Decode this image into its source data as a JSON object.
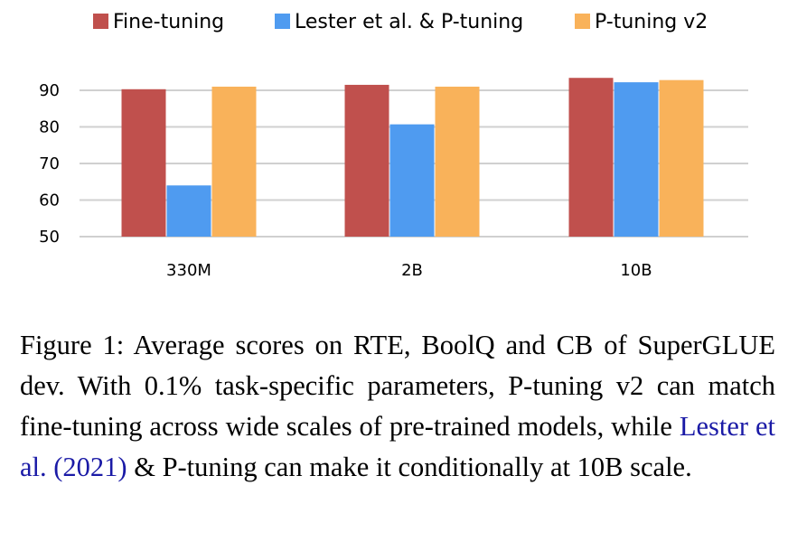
{
  "chart_data": {
    "type": "bar",
    "categories": [
      "330M",
      "2B",
      "10B"
    ],
    "series": [
      {
        "name": "Fine-tuning",
        "color": "#c0504d",
        "values": [
          90.3,
          91.5,
          93.4
        ]
      },
      {
        "name": "Lester et al. & P-tuning",
        "color": "#4f9bf0",
        "values": [
          64.0,
          80.7,
          92.2
        ]
      },
      {
        "name": "P-tuning v2",
        "color": "#f9b25a",
        "values": [
          91.0,
          91.0,
          92.8
        ]
      }
    ],
    "yticks": [
      50,
      60,
      70,
      80,
      90
    ],
    "ylim": [
      50,
      95
    ],
    "grid": true,
    "legend_position": "top"
  },
  "caption": {
    "label": "Figure 1:",
    "text_before_cite": "Average scores on RTE, BoolQ and CB of SuperGLUE dev. With 0.1% task-specific parameters, P-tuning v2 can match fine-tuning across wide scales of pre-trained models, while",
    "cite_author": "Lester et al.",
    "cite_year": "(2021)",
    "text_after_cite": "& P-tuning can make it conditionally at 10B scale."
  }
}
